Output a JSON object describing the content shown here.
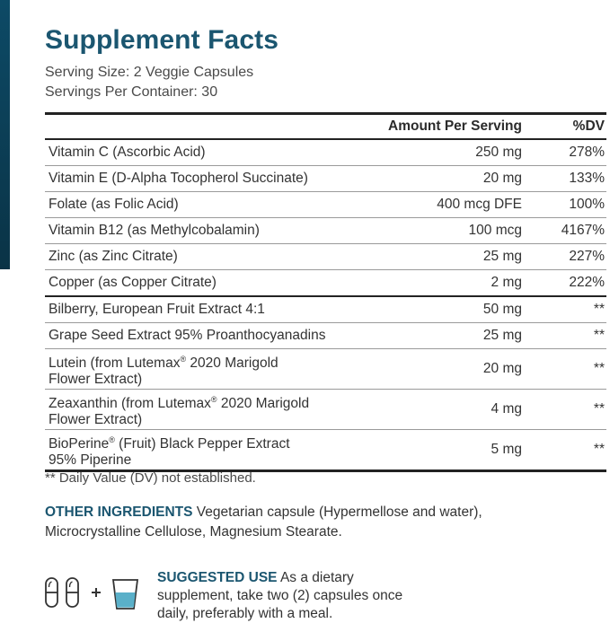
{
  "title": "Supplement Facts",
  "serving_size": "Serving Size: 2 Veggie Capsules",
  "servings_per_container": "Servings Per Container: 30",
  "table": {
    "header": {
      "amount": "Amount Per Serving",
      "dv": "%DV"
    },
    "vitamins": [
      {
        "name": "Vitamin C (Ascorbic Acid)",
        "amount": "250 mg",
        "dv": "278%"
      },
      {
        "name": "Vitamin E (D-Alpha Tocopherol Succinate)",
        "amount": "20 mg",
        "dv": "133%"
      },
      {
        "name": "Folate (as Folic Acid)",
        "amount": "400 mcg DFE",
        "dv": "100%"
      },
      {
        "name": "Vitamin B12 (as Methylcobalamin)",
        "amount": "100 mcg",
        "dv": "4167%"
      },
      {
        "name": "Zinc (as Zinc Citrate)",
        "amount": "25 mg",
        "dv": "227%"
      },
      {
        "name": "Copper (as Copper Citrate)",
        "amount": "2 mg",
        "dv": "222%"
      }
    ],
    "extracts": [
      {
        "name": "Bilberry, European Fruit Extract 4:1",
        "amount": "50 mg",
        "dv": "**"
      },
      {
        "name": "Grape Seed Extract 95% Proanthocyanadins",
        "amount": "25 mg",
        "dv": "**"
      },
      {
        "name_pre": "Lutein (from Lutemax",
        "mark": "®",
        "name_post": " 2020 Marigold",
        "name_line2": "Flower Extract)",
        "amount": "20 mg",
        "dv": "**"
      },
      {
        "name_pre": "Zeaxanthin (from Lutemax",
        "mark": "®",
        "name_post": " 2020 Marigold",
        "name_line2": "Flower Extract)",
        "amount": "4 mg",
        "dv": "**"
      },
      {
        "name_pre": "BioPerine",
        "mark": "®",
        "name_post": " (Fruit) Black Pepper Extract",
        "name_line2": "95% Piperine",
        "amount": "5 mg",
        "dv": "**"
      }
    ]
  },
  "footnote": "** Daily Value (DV) not established.",
  "other_ingredients": {
    "label": "OTHER INGREDIENTS",
    "text": " Vegetarian capsule (Hypermellose and water), Microcrystalline Cellulose, Magnesium Stearate."
  },
  "suggested_use": {
    "label": "SUGGESTED USE",
    "text": " As a dietary supplement, take two (2) capsules once daily, preferably with a meal."
  },
  "icons": {
    "capsule": "capsule-icon",
    "plus": "+",
    "glass": "water-glass-icon"
  },
  "colors": {
    "accent": "#1b5670",
    "bar": "#0d4a66",
    "glass_water": "#5ab0c9"
  }
}
